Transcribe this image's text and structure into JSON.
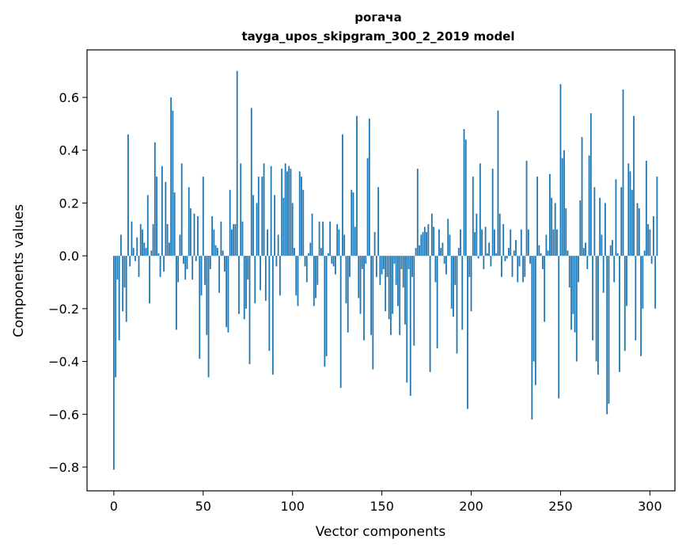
{
  "chart_data": {
    "type": "bar",
    "title": "рогача",
    "subtitle": "tayga_upos_skipgram_300_2_2019 model",
    "xlabel": "Vector components",
    "ylabel": "Components values",
    "xlim": [
      -15,
      314
    ],
    "ylim": [
      -0.89,
      0.78
    ],
    "xticks": [
      0,
      50,
      100,
      150,
      200,
      250,
      300
    ],
    "yticks": [
      -0.8,
      -0.6,
      -0.4,
      -0.2,
      0.0,
      0.2,
      0.4,
      0.6
    ],
    "ytick_labels": [
      "−0.8",
      "−0.6",
      "−0.4",
      "−0.2",
      "0.0",
      "0.2",
      "0.4",
      "0.6"
    ],
    "xtick_labels": [
      "0",
      "50",
      "100",
      "150",
      "200",
      "250",
      "300"
    ],
    "bar_color": "#1f77b4",
    "grid": false,
    "values": [
      -0.81,
      -0.46,
      -0.09,
      -0.32,
      0.08,
      -0.21,
      -0.12,
      -0.25,
      0.46,
      -0.04,
      0.13,
      0.03,
      -0.02,
      0.07,
      -0.08,
      0.12,
      0.1,
      0.05,
      0.03,
      0.23,
      -0.18,
      0.02,
      0.12,
      0.43,
      0.3,
      0.01,
      -0.08,
      0.34,
      -0.06,
      0.28,
      0.12,
      0.05,
      0.6,
      0.55,
      0.24,
      -0.28,
      -0.1,
      0.08,
      0.35,
      -0.03,
      -0.09,
      -0.05,
      0.26,
      0.18,
      -0.09,
      0.16,
      -0.02,
      0.15,
      -0.39,
      -0.15,
      0.3,
      -0.11,
      -0.3,
      -0.46,
      -0.05,
      0.15,
      0.1,
      0.04,
      0.03,
      -0.14,
      0.13,
      0.02,
      -0.06,
      -0.27,
      -0.29,
      0.25,
      0.1,
      0.12,
      0.12,
      0.7,
      -0.22,
      0.35,
      0.13,
      -0.24,
      -0.2,
      -0.09,
      -0.41,
      0.56,
      0.23,
      -0.18,
      0.2,
      0.3,
      -0.13,
      0.3,
      0.35,
      -0.17,
      0.1,
      -0.36,
      0.34,
      -0.45,
      0.23,
      -0.04,
      0.08,
      -0.15,
      0.33,
      0.22,
      0.35,
      0.32,
      0.34,
      0.33,
      0.2,
      0.03,
      -0.15,
      -0.19,
      0.32,
      0.3,
      0.25,
      -0.04,
      -0.1,
      0.01,
      0.05,
      0.16,
      -0.19,
      -0.16,
      -0.11,
      0.13,
      0.03,
      0.13,
      -0.42,
      -0.38,
      0.01,
      0.13,
      -0.03,
      -0.04,
      -0.07,
      0.12,
      0.1,
      -0.5,
      0.46,
      0.08,
      -0.18,
      -0.29,
      -0.08,
      0.25,
      0.24,
      0.11,
      0.53,
      -0.16,
      -0.22,
      -0.05,
      -0.32,
      -0.03,
      0.37,
      0.52,
      -0.3,
      -0.43,
      0.09,
      -0.08,
      0.26,
      -0.11,
      -0.07,
      -0.05,
      -0.21,
      -0.08,
      -0.24,
      -0.3,
      -0.22,
      -0.03,
      -0.11,
      -0.19,
      -0.3,
      -0.05,
      -0.12,
      -0.26,
      -0.48,
      -0.05,
      -0.53,
      -0.08,
      -0.34,
      0.03,
      0.33,
      0.04,
      0.08,
      0.09,
      0.11,
      0.09,
      0.12,
      -0.44,
      0.16,
      0.11,
      -0.1,
      -0.35,
      0.1,
      0.03,
      0.05,
      -0.03,
      -0.07,
      0.14,
      0.08,
      -0.2,
      -0.23,
      -0.11,
      -0.37,
      0.03,
      0.1,
      -0.28,
      0.48,
      0.44,
      -0.58,
      -0.08,
      -0.21,
      0.3,
      0.09,
      0.16,
      -0.01,
      0.35,
      0.1,
      -0.05,
      0.11,
      0.01,
      0.05,
      -0.04,
      0.33,
      0.1,
      0.01,
      0.55,
      0.16,
      -0.08,
      0.12,
      -0.02,
      -0.01,
      0.03,
      0.1,
      -0.08,
      0.02,
      0.06,
      -0.1,
      -0.04,
      0.1,
      -0.1,
      -0.08,
      0.36,
      0.1,
      -0.03,
      -0.62,
      -0.4,
      -0.49,
      0.3,
      0.04,
      0.01,
      -0.05,
      -0.25,
      0.08,
      0.02,
      0.31,
      0.22,
      0.1,
      0.2,
      0.1,
      -0.54,
      0.65,
      0.37,
      0.4,
      0.18,
      0.02,
      -0.12,
      -0.28,
      -0.22,
      -0.29,
      -0.4,
      -0.1,
      0.21,
      0.45,
      0.03,
      0.05,
      -0.05,
      0.38,
      0.54,
      -0.32,
      0.26,
      -0.4,
      -0.45,
      0.22,
      0.08,
      -0.14,
      0.2,
      -0.6,
      -0.56,
      0.04,
      0.06,
      -0.1,
      0.29,
      0.01,
      -0.44,
      0.26,
      0.63,
      -0.36,
      -0.19,
      0.35,
      0.32,
      0.25,
      0.53,
      -0.32,
      0.2,
      0.18,
      -0.38,
      -0.2,
      0.02,
      0.36,
      0.12,
      0.1,
      -0.03,
      0.15,
      -0.2,
      0.3
    ]
  }
}
